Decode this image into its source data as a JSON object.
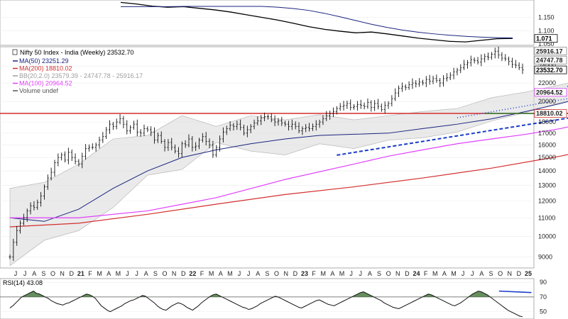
{
  "chart_data": [
    {
      "type": "line",
      "panel": "ratio",
      "yticks": [
        "1.150",
        "1.100",
        "1.050"
      ],
      "tags": [
        {
          "label": "1.071",
          "value": 1.071,
          "style": "box-black"
        }
      ],
      "series": [
        {
          "key": "ratio",
          "color": "#000000",
          "values": [
            1.206,
            1.2,
            1.192,
            1.188,
            1.19,
            1.184,
            1.178,
            1.17,
            1.16,
            1.15,
            1.14,
            1.128,
            1.115,
            1.105,
            1.098,
            1.092,
            1.095,
            1.088,
            1.08,
            1.072,
            1.066,
            1.06,
            1.058,
            1.064,
            1.07,
            1.071
          ]
        },
        {
          "key": "ratio-ma",
          "color": "#1a237e",
          "values": [
            1.19,
            1.19,
            1.19,
            1.19,
            1.191,
            1.191,
            1.191,
            1.191,
            1.191,
            1.191,
            1.188,
            1.183,
            1.176,
            1.165,
            1.152,
            1.138,
            1.124,
            1.112,
            1.102,
            1.094,
            1.088,
            1.083,
            1.079,
            1.076,
            1.074,
            1.073
          ]
        }
      ]
    },
    {
      "type": "line",
      "panel": "price",
      "title": "Nifty 50 Index - India (Weekly) 23532.70",
      "legend": [
        {
          "label": "MA(50) 23251.29",
          "color": "#1a237e"
        },
        {
          "label": "MA(200) 18810.02",
          "color": "#d32f2f"
        },
        {
          "label": "BB(20,2.0) 23579.39 - 24747.78 - 25916.17",
          "color": "#9e9e9e"
        },
        {
          "label": "MA(100) 20964.52",
          "color": "#e040fb"
        },
        {
          "label": "Volume undef",
          "color": "#555555"
        }
      ],
      "x_labels": [
        "J",
        "J",
        "A",
        "S",
        "O",
        "N",
        "D",
        "21",
        "F",
        "M",
        "A",
        "M",
        "J",
        "J",
        "A",
        "S",
        "O",
        "N",
        "D",
        "22",
        "F",
        "M",
        "A",
        "M",
        "J",
        "J",
        "A",
        "S",
        "O",
        "N",
        "D",
        "23",
        "F",
        "M",
        "A",
        "M",
        "J",
        "J",
        "A",
        "S",
        "O",
        "N",
        "D",
        "24",
        "F",
        "M",
        "A",
        "M",
        "J",
        "J",
        "A",
        "S",
        "O",
        "N",
        "D",
        "25"
      ],
      "yticks": [
        "24000",
        "22000",
        "20000",
        "19000",
        "18000",
        "17000",
        "16000",
        "15000",
        "14000",
        "13000",
        "12000",
        "11000",
        "10000",
        "9000"
      ],
      "ylim": [
        8500,
        26500
      ],
      "yscale": "log",
      "tags": [
        {
          "label": "25916.17",
          "value": 25916.17,
          "style": "box-gray"
        },
        {
          "label": "24747.78",
          "value": 24747.78,
          "style": "box-gray"
        },
        {
          "label": "23532.70",
          "value": 23532.7,
          "style": "box-black"
        },
        {
          "label": "20964.52",
          "value": 20964.52,
          "style": "box-magenta"
        },
        {
          "label": "18810.02",
          "value": 18810.02,
          "style": "box-red"
        }
      ],
      "price": [
        9000,
        9700,
        10300,
        10700,
        11000,
        11400,
        11700,
        11600,
        11900,
        12300,
        12900,
        13500,
        13900,
        14600,
        15000,
        15200,
        14800,
        15400,
        15000,
        14700,
        14500,
        15100,
        15700,
        15800,
        15800,
        16000,
        16400,
        16700,
        17300,
        17800,
        17600,
        18000,
        18300,
        17800,
        17200,
        17500,
        17800,
        17100,
        17000,
        17400,
        17300,
        17100,
        16400,
        16800,
        16300,
        15800,
        16200,
        15800,
        15500,
        15300,
        16100,
        16000,
        16500,
        15800,
        15900,
        16400,
        16700,
        16300,
        16000,
        15200,
        15800,
        16500,
        17100,
        17400,
        17700,
        17600,
        17800,
        17500,
        17000,
        17300,
        17600,
        17900,
        18100,
        18400,
        18500,
        18500,
        18200,
        18000,
        18100,
        17900,
        17800,
        17600,
        17800,
        17600,
        17200,
        17400,
        17500,
        17400,
        17600,
        17800,
        18000,
        18300,
        18600,
        18800,
        19000,
        19300,
        19500,
        19600,
        19800,
        19400,
        19500,
        19700,
        19600,
        19500,
        19900,
        19400,
        19800,
        19500,
        19200,
        19600,
        19800,
        20300,
        20900,
        21400,
        21600,
        21500,
        21800,
        22000,
        21900,
        22100,
        22000,
        22400,
        22200,
        22500,
        22300,
        22000,
        22500,
        22600,
        22900,
        23300,
        23500,
        23800,
        24200,
        24400,
        24800,
        24700,
        24500,
        24900,
        25200,
        25100,
        25500,
        25900,
        25400,
        25000,
        24900,
        24600,
        24200,
        24100,
        23800,
        23532.7
      ],
      "overlays": [
        {
          "key": "ma50",
          "color": "#1a237e",
          "width": 1,
          "points": [
            [
              0,
              11000
            ],
            [
              10,
              10800
            ],
            [
              20,
              11500
            ],
            [
              30,
              12800
            ],
            [
              40,
              14000
            ],
            [
              50,
              15000
            ],
            [
              60,
              15600
            ],
            [
              70,
              16100
            ],
            [
              80,
              16500
            ],
            [
              90,
              16800
            ],
            [
              100,
              16900
            ],
            [
              110,
              17000
            ],
            [
              120,
              17400
            ],
            [
              130,
              17800
            ],
            [
              140,
              18300
            ],
            [
              150,
              19000
            ],
            [
              160,
              19800
            ],
            [
              170,
              20700
            ],
            [
              180,
              21700
            ],
            [
              190,
              22600
            ],
            [
              195,
              23100
            ],
            [
              200,
              23251.29
            ]
          ]
        },
        {
          "key": "ma100",
          "color": "#e040fb",
          "width": 1.2,
          "points": [
            [
              0,
              11000
            ],
            [
              20,
              11000
            ],
            [
              40,
              11400
            ],
            [
              60,
              12200
            ],
            [
              80,
              13400
            ],
            [
              100,
              14500
            ],
            [
              110,
              15100
            ],
            [
              120,
              15600
            ],
            [
              130,
              16100
            ],
            [
              140,
              16500
            ],
            [
              150,
              16900
            ],
            [
              160,
              17400
            ],
            [
              170,
              18100
            ],
            [
              180,
              18900
            ],
            [
              190,
              19800
            ],
            [
              200,
              20964.52
            ]
          ]
        },
        {
          "key": "ma200",
          "color": "#d32f2f",
          "width": 1.2,
          "points": [
            [
              0,
              10500
            ],
            [
              20,
              10700
            ],
            [
              40,
              11200
            ],
            [
              60,
              11800
            ],
            [
              80,
              12400
            ],
            [
              100,
              12900
            ],
            [
              120,
              13500
            ],
            [
              140,
              14200
            ],
            [
              160,
              15100
            ],
            [
              180,
              16300
            ],
            [
              190,
              17400
            ],
            [
              200,
              18810.02
            ]
          ]
        },
        {
          "key": "hline-red",
          "color": "#d32f2f",
          "width": 1.5,
          "points": [
            [
              -6,
              18810
            ],
            [
              202,
              18810
            ]
          ]
        },
        {
          "key": "hline-green",
          "color": "#2e7d32",
          "width": 1.5,
          "points": [
            [
              138,
              18810
            ],
            [
              202,
              18810
            ]
          ]
        },
        {
          "key": "trend-dashed",
          "color": "#1a3cc8",
          "width": 2,
          "dash": "5,3",
          "points": [
            [
              95,
              15180
            ],
            [
              172,
              18880
            ]
          ]
        },
        {
          "key": "trend-dotted",
          "color": "#1a3cc8",
          "width": 1.5,
          "dash": "1,3",
          "points": [
            [
              130,
              18400
            ],
            [
              187,
              21900
            ]
          ]
        },
        {
          "key": "channel-upper",
          "color": "#1a3cc8",
          "width": 1.5,
          "points": [
            [
              162,
              21600
            ],
            [
              194,
              26000
            ]
          ]
        },
        {
          "key": "channel-lower",
          "color": "#1a3cc8",
          "width": 1.5,
          "points": [
            [
              166,
              20100
            ],
            [
              191,
              22500
            ]
          ]
        }
      ],
      "bollinger": {
        "upper": [
          [
            0,
            12800
          ],
          [
            10,
            13200
          ],
          [
            20,
            14500
          ],
          [
            30,
            16500
          ],
          [
            40,
            16800
          ],
          [
            50,
            18600
          ],
          [
            60,
            17600
          ],
          [
            70,
            18600
          ],
          [
            80,
            18200
          ],
          [
            90,
            18700
          ],
          [
            100,
            18200
          ],
          [
            110,
            18600
          ],
          [
            120,
            19000
          ],
          [
            130,
            19300
          ],
          [
            140,
            20400
          ],
          [
            150,
            21000
          ],
          [
            160,
            21800
          ],
          [
            170,
            22700
          ],
          [
            180,
            23800
          ],
          [
            190,
            25300
          ],
          [
            200,
            25916.17
          ]
        ],
        "lower": [
          [
            0,
            8600
          ],
          [
            10,
            9800
          ],
          [
            20,
            10300
          ],
          [
            30,
            11600
          ],
          [
            40,
            13700
          ],
          [
            50,
            14100
          ],
          [
            60,
            16200
          ],
          [
            70,
            15500
          ],
          [
            80,
            15200
          ],
          [
            90,
            16100
          ],
          [
            100,
            15700
          ],
          [
            110,
            16400
          ],
          [
            120,
            16600
          ],
          [
            130,
            17100
          ],
          [
            140,
            18100
          ],
          [
            150,
            18900
          ],
          [
            160,
            19900
          ],
          [
            170,
            20600
          ],
          [
            180,
            21600
          ],
          [
            190,
            22800
          ],
          [
            200,
            23579.39
          ]
        ]
      }
    },
    {
      "type": "area",
      "panel": "rsi",
      "legend": [
        {
          "label": "RSI(14) 43.08",
          "color": "#000000"
        }
      ],
      "yticks": [
        "90",
        "70",
        "50"
      ],
      "ylim": [
        40,
        95
      ],
      "threshold": 70,
      "values": [
        55,
        58,
        62,
        66,
        70,
        72,
        74,
        76,
        78,
        75,
        74,
        72,
        70,
        68,
        65,
        63,
        61,
        60,
        59,
        61,
        62,
        64,
        66,
        68,
        70,
        72,
        74,
        73,
        71,
        68,
        63,
        58,
        55,
        52,
        50,
        52,
        54,
        56,
        58,
        61,
        63,
        65,
        66,
        68,
        70,
        72,
        71,
        68,
        65,
        62,
        58,
        55,
        53,
        52,
        55,
        58,
        60,
        62,
        61,
        59,
        56,
        54,
        52,
        55,
        58,
        62,
        65,
        68,
        71,
        73,
        74,
        72,
        70,
        68,
        66,
        64,
        62,
        60,
        58,
        56,
        55,
        53,
        54,
        56,
        58,
        61,
        63,
        65,
        67,
        69,
        71,
        70,
        68,
        66,
        64,
        62,
        60,
        58,
        56,
        55,
        57,
        59,
        61,
        63,
        65,
        66,
        64,
        62,
        60,
        59,
        58,
        60,
        62,
        64,
        66,
        68,
        70,
        72,
        74,
        76,
        77,
        75,
        73,
        71,
        69,
        67,
        65,
        62,
        60,
        58,
        56,
        55,
        54,
        56,
        58,
        60,
        62,
        64,
        66,
        68,
        70,
        72,
        74,
        73,
        71,
        69,
        67,
        65,
        63,
        61,
        59,
        58,
        60,
        62,
        65,
        68,
        71,
        74,
        76,
        78,
        77,
        75,
        73,
        70,
        67,
        64,
        61,
        58,
        55,
        52,
        50,
        48,
        46,
        44,
        43.08
      ],
      "divergence": {
        "color": "#1a3cc8",
        "points": [
          [
            166,
            78
          ],
          [
            177,
            76
          ]
        ]
      }
    }
  ]
}
